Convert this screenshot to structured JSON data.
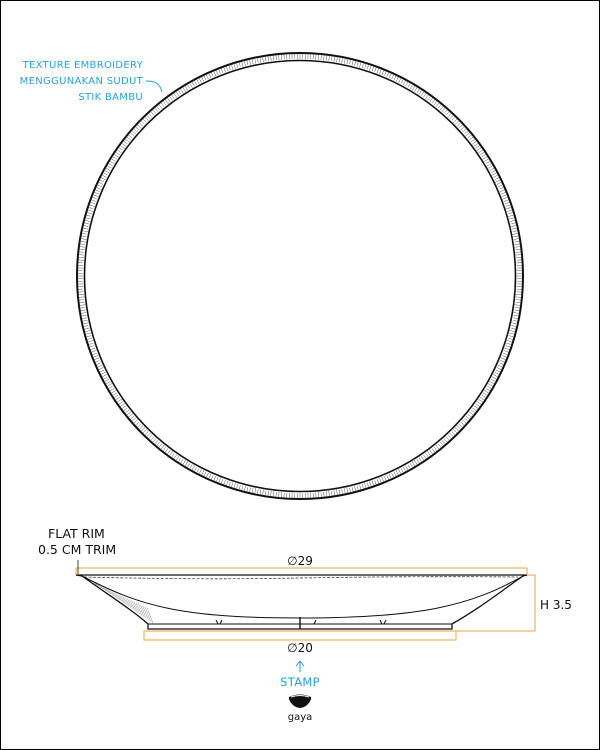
{
  "annotations": {
    "texture_note_line1": "TEXTURE EMBROIDERY",
    "texture_note_line2": "MENGGUNAKAN SUDUT",
    "texture_note_line3": "STIK BAMBU",
    "rim_line1": "FLAT RIM",
    "rim_line2": "0.5 CM TRIM",
    "stamp": "STAMP",
    "logo_text": "gaya"
  },
  "dimensions": {
    "top_diameter": "∅29",
    "bottom_diameter": "∅20",
    "height": "H 3.5"
  },
  "colors": {
    "annotation": "#2a9fd6",
    "dimension_line": "#f0a040",
    "outline": "#111111"
  }
}
